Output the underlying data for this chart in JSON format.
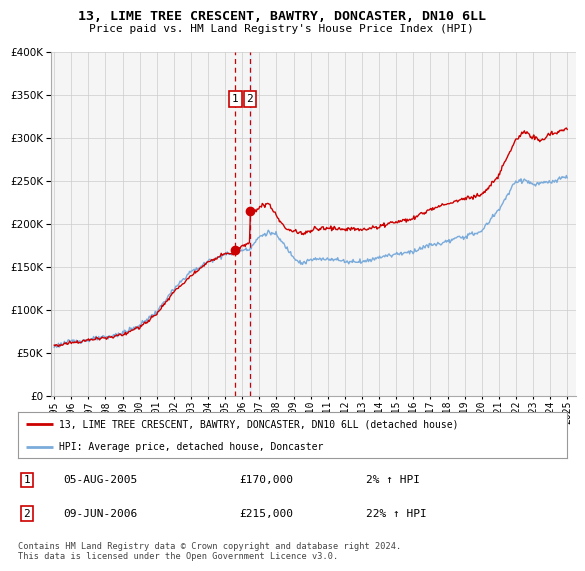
{
  "title": "13, LIME TREE CRESCENT, BAWTRY, DONCASTER, DN10 6LL",
  "subtitle": "Price paid vs. HM Land Registry's House Price Index (HPI)",
  "legend_line1": "13, LIME TREE CRESCENT, BAWTRY, DONCASTER, DN10 6LL (detached house)",
  "legend_line2": "HPI: Average price, detached house, Doncaster",
  "transaction1_date": "05-AUG-2005",
  "transaction1_price": "£170,000",
  "transaction1_hpi": "2% ↑ HPI",
  "transaction2_date": "09-JUN-2006",
  "transaction2_price": "£215,000",
  "transaction2_hpi": "22% ↑ HPI",
  "footnote": "Contains HM Land Registry data © Crown copyright and database right 2024.\nThis data is licensed under the Open Government Licence v3.0.",
  "hpi_color": "#7aabdb",
  "price_color": "#cc0000",
  "dashed_color": "#cc0000",
  "highlight_color": "#ddeeff",
  "background_color": "#ffffff",
  "grid_color": "#cccccc",
  "ylim": [
    0,
    400000
  ],
  "yticks": [
    0,
    50000,
    100000,
    150000,
    200000,
    250000,
    300000,
    350000,
    400000
  ],
  "transaction1_x": 2005.6,
  "transaction1_y": 170000,
  "transaction2_x": 2006.45,
  "transaction2_y": 215000,
  "xmin": 1994.8,
  "xmax": 2025.5
}
